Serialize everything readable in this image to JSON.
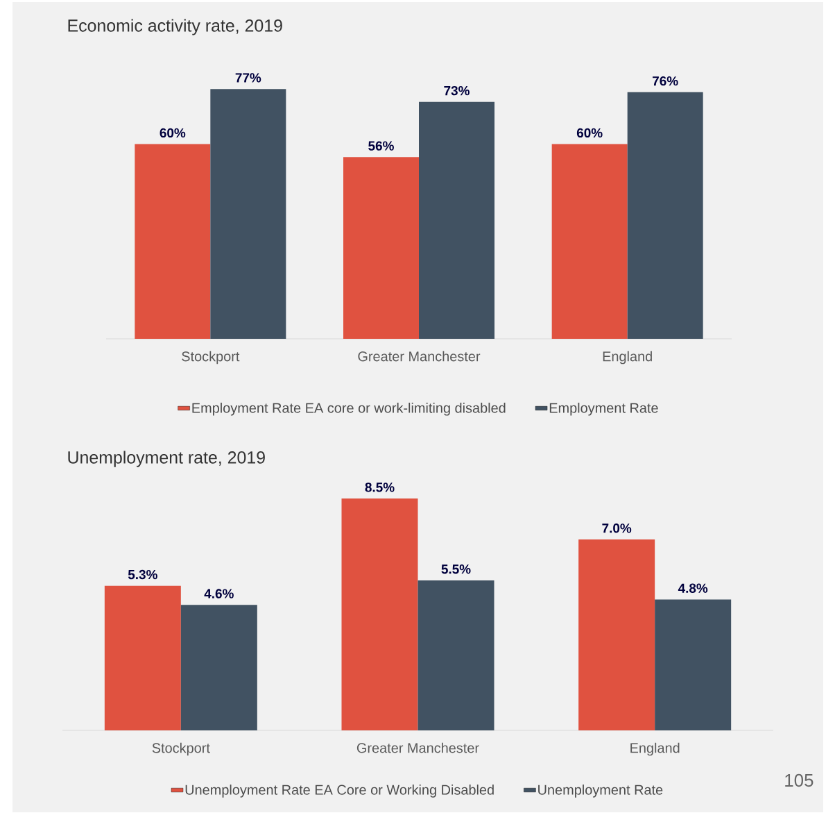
{
  "chart_data": [
    {
      "type": "bar",
      "title": "Economic activity rate, 2019",
      "categories": [
        "Stockport",
        "Greater Manchester",
        "England"
      ],
      "legend": "bottom",
      "series": [
        {
          "name": "Employment Rate EA core or work-limiting disabled",
          "color": "#e05240",
          "values": [
            60,
            56,
            60
          ],
          "value_labels": [
            "60%",
            "56%",
            "60%"
          ]
        },
        {
          "name": "Employment Rate",
          "color": "#415262",
          "values": [
            77,
            73,
            76
          ],
          "value_labels": [
            "77%",
            "73%",
            "76%"
          ]
        }
      ]
    },
    {
      "type": "bar",
      "title": "Unemployment rate, 2019",
      "categories": [
        "Stockport",
        "Greater Manchester",
        "England"
      ],
      "legend": "bottom",
      "annotations": [
        "105"
      ],
      "series": [
        {
          "name": "Unemployment Rate EA Core or Working Disabled",
          "color": "#e05240",
          "values": [
            5.3,
            8.5,
            7.0
          ],
          "value_labels": [
            "5.3%",
            "8.5%",
            "7.0%"
          ]
        },
        {
          "name": "Unemployment Rate",
          "color": "#415262",
          "values": [
            4.6,
            5.5,
            4.8
          ],
          "value_labels": [
            "4.6%",
            "5.5%",
            "4.8%"
          ]
        }
      ]
    }
  ]
}
